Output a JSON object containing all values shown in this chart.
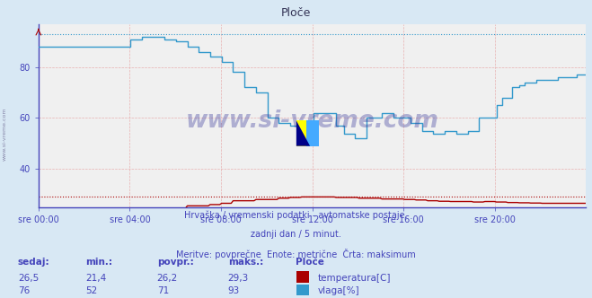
{
  "title": "Ploče",
  "bg_color": "#d8e8f4",
  "plot_bg_color": "#f0f0f0",
  "grid_color_h": "#e8b0b0",
  "grid_color_v": "#e8b0b0",
  "grid_color_dot": "#c8c8d8",
  "axis_color": "#4444bb",
  "text_color": "#4444bb",
  "xticklabels": [
    "sre 00:00",
    "sre 04:00",
    "sre 08:00",
    "sre 12:00",
    "sre 16:00",
    "sre 20:00"
  ],
  "xtick_positions": [
    0,
    4,
    8,
    12,
    16,
    20
  ],
  "ylim_min": 25,
  "ylim_max": 97,
  "yticks": [
    40,
    60,
    80
  ],
  "temp_color": "#aa0000",
  "hum_color": "#3399cc",
  "temp_max_val": 29.3,
  "hum_max_val": 93,
  "watermark": "www.si-vreme.com",
  "footnote1": "Hrvaška / vremenski podatki - avtomatske postaje.",
  "footnote2": "zadnji dan / 5 minut.",
  "footnote3": "Meritve: povprečne  Enote: metrične  Črta: maksimum",
  "label_sedaj": "sedaj:",
  "label_min": "min.:",
  "label_povpr": "povpr.:",
  "label_maks": "maks.:",
  "temp_sedaj": "26,5",
  "temp_min": "21,4",
  "temp_povpr": "26,2",
  "temp_maks": "29,3",
  "hum_sedaj": "76",
  "hum_min": "52",
  "hum_povpr": "71",
  "hum_maks": "93",
  "legend_temp": "temperatura[C]",
  "legend_hum": "vlaga[%]",
  "station": "Ploče"
}
